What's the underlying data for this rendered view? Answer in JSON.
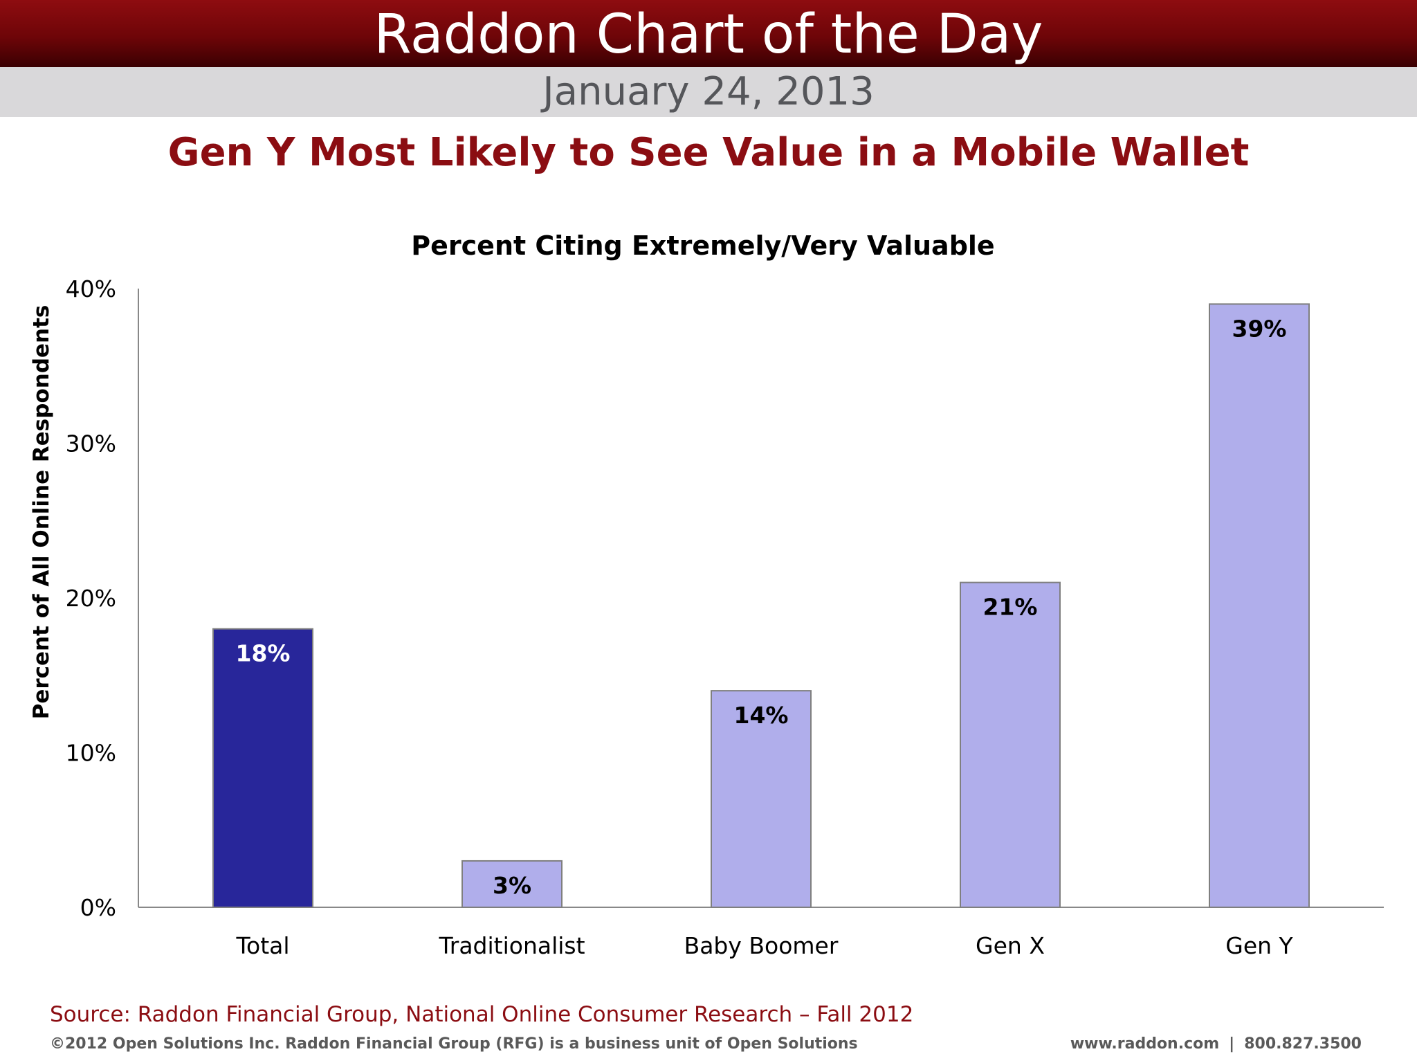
{
  "header": {
    "title": "Raddon Chart of the Day",
    "date": "January 24, 2013",
    "headline": "Gen Y Most Likely to See Value in a Mobile Wallet"
  },
  "colors": {
    "banner": "#7a0609",
    "headline": "#8b0d12",
    "bar_total": "#28269a",
    "bar_other": "#b0aeeb"
  },
  "chart_data": {
    "type": "bar",
    "title": "Percent Citing Extremely/Very Valuable",
    "xlabel": "",
    "ylabel": "Percent of All Online Respondents",
    "categories": [
      "Total",
      "Traditionalist",
      "Baby Boomer",
      "Gen X",
      "Gen Y"
    ],
    "values": [
      18,
      3,
      14,
      21,
      39
    ],
    "data_labels": [
      "18%",
      "3%",
      "14%",
      "21%",
      "39%"
    ],
    "ylim": [
      0,
      40
    ],
    "yticks": [
      0,
      10,
      20,
      30,
      40
    ],
    "ytick_labels": [
      "0%",
      "10%",
      "20%",
      "30%",
      "40%"
    ],
    "grid": false,
    "legend": "none"
  },
  "footer": {
    "source": "Source: Raddon Financial Group, National Online Consumer Research – Fall 2012",
    "copyright": "©2012 Open Solutions Inc.  Raddon Financial Group (RFG) is a business unit of Open Solutions",
    "website": "www.raddon.com",
    "separator": "|",
    "phone": "800.827.3500"
  }
}
